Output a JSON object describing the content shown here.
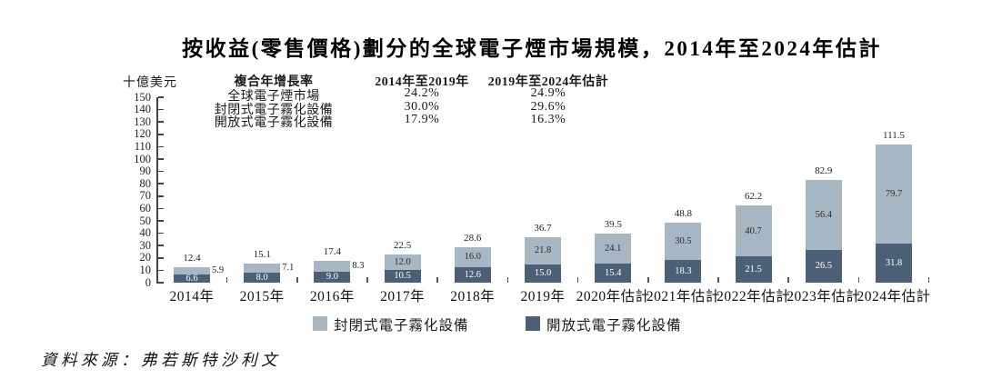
{
  "title": "按收益(零售價格)劃分的全球電子煙市場規模，2014年至2024年估計",
  "source": "資料來源：弗若斯特沙利文",
  "cagr": {
    "title": "複合年增長率",
    "period1": "2014年至2019年",
    "period2": "2019年至2024年估計",
    "rows": [
      {
        "label": "全球電子煙市場",
        "v1": "24.2%",
        "v2": "24.9%"
      },
      {
        "label": "封閉式電子霧化設備",
        "v1": "30.0%",
        "v2": "29.6%"
      },
      {
        "label": "開放式電子霧化設備",
        "v1": "17.9%",
        "v2": "16.3%"
      }
    ]
  },
  "chart_data": {
    "type": "bar",
    "stacked": true,
    "title": "按收益(零售價格)劃分的全球電子煙市場規模，2014年至2024年估計",
    "ylabel": "十億美元",
    "ylim": [
      0,
      150
    ],
    "ytick_step": 10,
    "grid": false,
    "legend_position": "bottom",
    "categories": [
      "2014年",
      "2015年",
      "2016年",
      "2017年",
      "2018年",
      "2019年",
      "2020年估計",
      "2021年估計",
      "2022年估計",
      "2023年估計",
      "2024年估計"
    ],
    "series": [
      {
        "name": "封閉式電子霧化設備",
        "color": "#a8b7c4",
        "values": [
          5.9,
          7.1,
          8.3,
          12.0,
          16.0,
          21.8,
          24.1,
          30.5,
          40.7,
          56.4,
          79.7
        ]
      },
      {
        "name": "開放式電子霧化設備",
        "color": "#4b6077",
        "values": [
          6.6,
          8.0,
          9.0,
          10.5,
          12.6,
          15.0,
          15.4,
          18.3,
          21.5,
          26.5,
          31.8
        ]
      }
    ],
    "totals": [
      12.4,
      15.1,
      17.4,
      22.5,
      28.6,
      36.7,
      39.5,
      48.8,
      62.2,
      82.9,
      111.5
    ]
  }
}
